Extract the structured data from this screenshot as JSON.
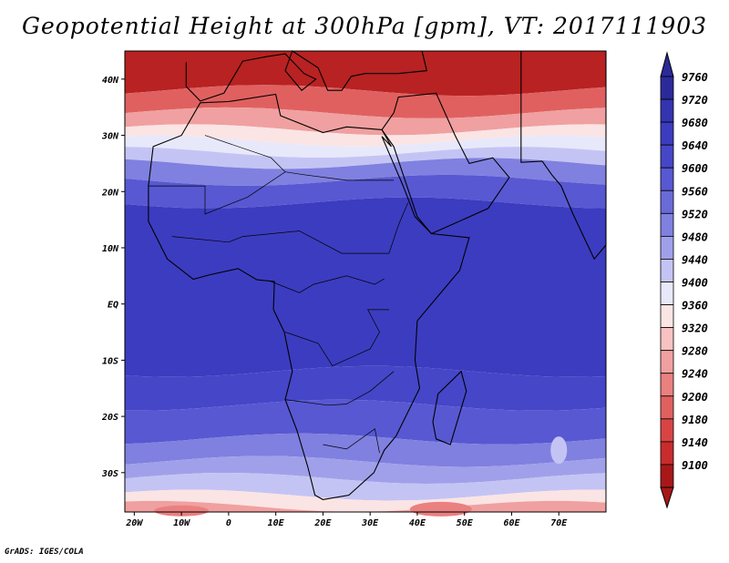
{
  "title": "Geopotential Height at 300hPa [gpm], VT: 2017111903",
  "footer": "GrADS: IGES/COLA",
  "map": {
    "variable": "geopotential height",
    "level": "300hPa",
    "units": "gpm",
    "valid_time": "2017111903",
    "lon_range": [
      -22,
      80
    ],
    "lat_range": [
      -37,
      45
    ],
    "x_ticks": [
      {
        "lon": -20,
        "label": "20W"
      },
      {
        "lon": -10,
        "label": "10W"
      },
      {
        "lon": 0,
        "label": "0"
      },
      {
        "lon": 10,
        "label": "10E"
      },
      {
        "lon": 20,
        "label": "20E"
      },
      {
        "lon": 30,
        "label": "30E"
      },
      {
        "lon": 40,
        "label": "40E"
      },
      {
        "lon": 50,
        "label": "50E"
      },
      {
        "lon": 60,
        "label": "60E"
      },
      {
        "lon": 70,
        "label": "70E"
      }
    ],
    "y_ticks": [
      {
        "lat": 40,
        "label": "40N"
      },
      {
        "lat": 30,
        "label": "30N"
      },
      {
        "lat": 20,
        "label": "20N"
      },
      {
        "lat": 10,
        "label": "10N"
      },
      {
        "lat": 0,
        "label": "EQ"
      },
      {
        "lat": -10,
        "label": "10S"
      },
      {
        "lat": -20,
        "label": "20S"
      },
      {
        "lat": -30,
        "label": "30S"
      }
    ]
  },
  "colorbar": {
    "levels": [
      "9760",
      "9720",
      "9680",
      "9640",
      "9600",
      "9560",
      "9520",
      "9480",
      "9440",
      "9400",
      "9360",
      "9320",
      "9280",
      "9240",
      "9200",
      "9180",
      "9140",
      "9100"
    ],
    "colors": [
      "#2c2a9a",
      "#3434b0",
      "#3c3cc0",
      "#4646c8",
      "#5858d2",
      "#6a6ad8",
      "#8080e0",
      "#a0a0ea",
      "#c4c4f4",
      "#e8e8fb",
      "#fbe4e4",
      "#f6c2c2",
      "#f0a0a0",
      "#ea8080",
      "#e06060",
      "#d84444",
      "#c82c2c",
      "#a81818"
    ]
  },
  "field_bands": [
    {
      "lat_top": 45,
      "lat_bot": 38,
      "color": "#b82222"
    },
    {
      "lat_top": 38,
      "lat_bot": 34,
      "color": "#e06060"
    },
    {
      "lat_top": 34,
      "lat_bot": 31,
      "color": "#f0a0a0"
    },
    {
      "lat_top": 31,
      "lat_bot": 29,
      "color": "#fbe4e4"
    },
    {
      "lat_top": 29,
      "lat_bot": 27,
      "color": "#e8e8fb"
    },
    {
      "lat_top": 27,
      "lat_bot": 25,
      "color": "#c4c4f4"
    },
    {
      "lat_top": 25,
      "lat_bot": 22,
      "color": "#8080e0"
    },
    {
      "lat_top": 22,
      "lat_bot": 18,
      "color": "#5858d2"
    },
    {
      "lat_top": 18,
      "lat_bot": -12,
      "color": "#3c3cc0"
    },
    {
      "lat_top": -12,
      "lat_bot": -18,
      "color": "#4646c8"
    },
    {
      "lat_top": -18,
      "lat_bot": -24,
      "color": "#5858d2"
    },
    {
      "lat_top": -24,
      "lat_bot": -28,
      "color": "#8080e0"
    },
    {
      "lat_top": -28,
      "lat_bot": -31,
      "color": "#a0a0ea"
    },
    {
      "lat_top": -31,
      "lat_bot": -34,
      "color": "#c4c4f4"
    },
    {
      "lat_top": -34,
      "lat_bot": -36,
      "color": "#fbe4e4"
    },
    {
      "lat_top": -36,
      "lat_bot": -37,
      "color": "#f0a0a0"
    }
  ]
}
